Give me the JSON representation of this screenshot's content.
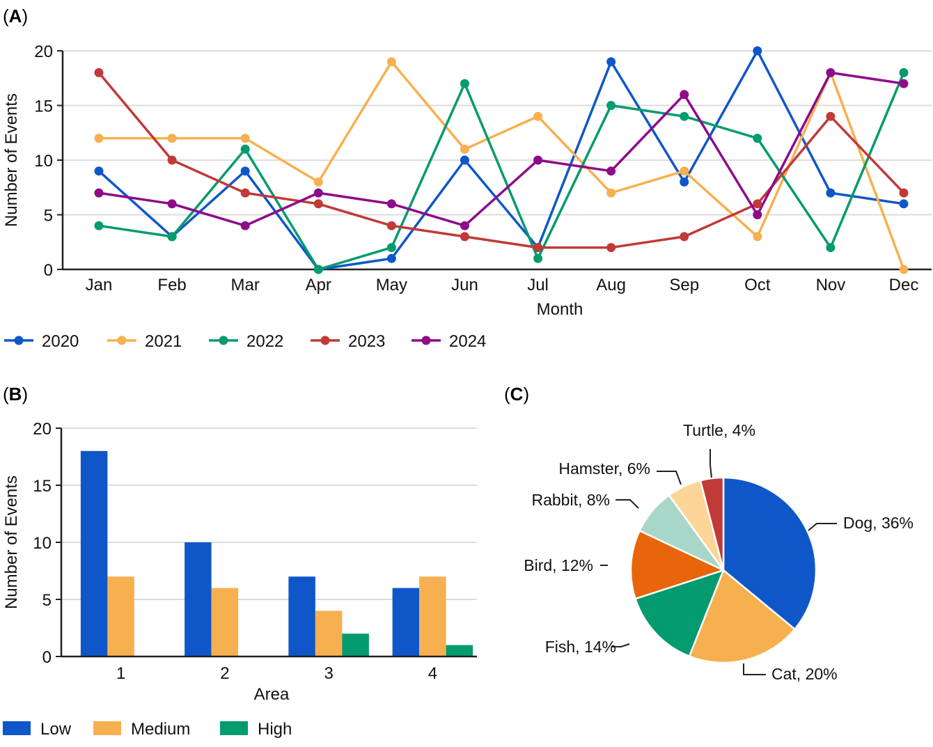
{
  "panels": {
    "a_label": "(A)",
    "b_label": "(B)",
    "c_label": "(C)"
  },
  "chart_data": [
    {
      "id": "A",
      "type": "line",
      "title": "",
      "xlabel": "Month",
      "ylabel": "Number of Events",
      "ylim": [
        0,
        20
      ],
      "yticks": [
        0,
        5,
        10,
        15,
        20
      ],
      "grid": true,
      "legend_position": "bottom-left",
      "categories": [
        "Jan",
        "Feb",
        "Mar",
        "Apr",
        "May",
        "Jun",
        "Jul",
        "Aug",
        "Sep",
        "Oct",
        "Nov",
        "Dec"
      ],
      "series": [
        {
          "name": "2020",
          "color": "#0f57c9",
          "values": [
            9,
            3,
            9,
            0,
            1,
            10,
            2,
            19,
            8,
            20,
            7,
            6
          ]
        },
        {
          "name": "2021",
          "color": "#f7b04f",
          "values": [
            12,
            12,
            12,
            8,
            19,
            11,
            14,
            7,
            9,
            3,
            18,
            0
          ]
        },
        {
          "name": "2022",
          "color": "#049b6e",
          "values": [
            4,
            3,
            11,
            0,
            2,
            17,
            1,
            15,
            14,
            12,
            2,
            18
          ]
        },
        {
          "name": "2023",
          "color": "#c03a37",
          "values": [
            18,
            10,
            7,
            6,
            4,
            3,
            2,
            2,
            3,
            6,
            14,
            7
          ]
        },
        {
          "name": "2024",
          "color": "#8e0b8a",
          "values": [
            7,
            6,
            4,
            7,
            6,
            4,
            10,
            9,
            16,
            5,
            18,
            17
          ]
        }
      ]
    },
    {
      "id": "B",
      "type": "bar",
      "title": "",
      "xlabel": "Area",
      "ylabel": "Number of Events",
      "ylim": [
        0,
        20
      ],
      "yticks": [
        0,
        5,
        10,
        15,
        20
      ],
      "grid": true,
      "legend_position": "bottom-left",
      "categories": [
        "1",
        "2",
        "3",
        "4"
      ],
      "series": [
        {
          "name": "Low",
          "color": "#0f57c9",
          "values": [
            18,
            10,
            7,
            6
          ]
        },
        {
          "name": "Medium",
          "color": "#f7b04f",
          "values": [
            7,
            6,
            4,
            7
          ]
        },
        {
          "name": "High",
          "color": "#049b6e",
          "values": [
            0,
            0,
            2,
            1
          ]
        }
      ]
    },
    {
      "id": "C",
      "type": "pie",
      "title": "",
      "slices": [
        {
          "label": "Dog",
          "value": 36,
          "text": "Dog, 36%",
          "color": "#0f57c9"
        },
        {
          "label": "Cat",
          "value": 20,
          "text": "Cat, 20%",
          "color": "#f7b04f"
        },
        {
          "label": "Fish",
          "value": 14,
          "text": "Fish, 14%",
          "color": "#049b6e"
        },
        {
          "label": "Bird",
          "value": 12,
          "text": "Bird, 12%",
          "color": "#e8650b"
        },
        {
          "label": "Rabbit",
          "value": 8,
          "text": "Rabbit, 8%",
          "color": "#a8d6c8"
        },
        {
          "label": "Hamster",
          "value": 6,
          "text": "Hamster, 6%",
          "color": "#fdd597"
        },
        {
          "label": "Turtle",
          "value": 4,
          "text": "Turtle, 4%",
          "color": "#c03a37"
        }
      ]
    }
  ]
}
